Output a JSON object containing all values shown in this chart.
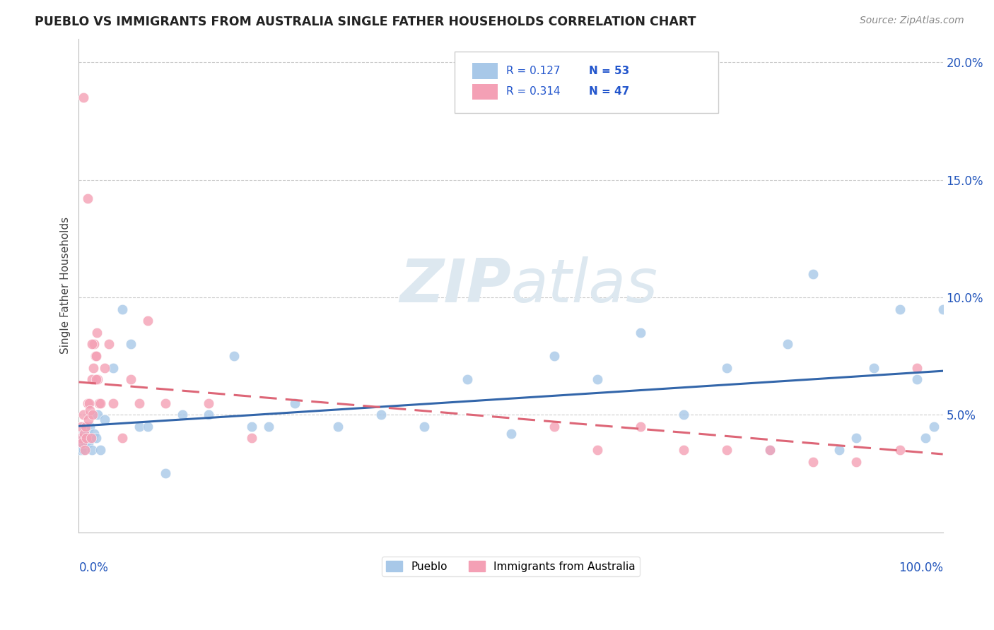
{
  "title": "PUEBLO VS IMMIGRANTS FROM AUSTRALIA SINGLE FATHER HOUSEHOLDS CORRELATION CHART",
  "source": "Source: ZipAtlas.com",
  "ylabel": "Single Father Households",
  "r_pueblo": "0.127",
  "n_pueblo": "53",
  "r_aus": "0.314",
  "n_aus": "47",
  "xlim": [
    0.0,
    100.0
  ],
  "ylim": [
    0.0,
    21.0
  ],
  "yticks": [
    5.0,
    10.0,
    15.0,
    20.0
  ],
  "color_pueblo": "#a8c8e8",
  "color_aus": "#f4a0b5",
  "color_pueblo_line": "#3366aa",
  "color_aus_line": "#dd6677",
  "watermark_color": "#dde8f0",
  "background_color": "#ffffff",
  "pueblo_x": [
    0.2,
    0.3,
    0.4,
    0.5,
    0.5,
    0.6,
    0.7,
    0.8,
    0.9,
    1.0,
    1.1,
    1.2,
    1.3,
    1.5,
    1.6,
    1.8,
    2.0,
    2.2,
    2.5,
    3.0,
    4.0,
    5.0,
    6.0,
    7.0,
    8.0,
    10.0,
    12.0,
    15.0,
    18.0,
    20.0,
    22.0,
    25.0,
    30.0,
    35.0,
    40.0,
    45.0,
    50.0,
    55.0,
    60.0,
    65.0,
    70.0,
    75.0,
    80.0,
    82.0,
    85.0,
    88.0,
    90.0,
    92.0,
    95.0,
    97.0,
    98.0,
    99.0,
    100.0
  ],
  "pueblo_y": [
    3.5,
    4.0,
    3.8,
    4.2,
    3.5,
    4.5,
    4.0,
    3.8,
    4.5,
    4.2,
    3.8,
    4.0,
    4.5,
    3.5,
    4.0,
    4.2,
    4.0,
    5.0,
    3.5,
    4.8,
    7.0,
    9.5,
    8.0,
    4.5,
    4.5,
    2.5,
    5.0,
    5.0,
    7.5,
    4.5,
    4.5,
    5.5,
    4.5,
    5.0,
    4.5,
    6.5,
    4.2,
    7.5,
    6.5,
    8.5,
    5.0,
    7.0,
    3.5,
    8.0,
    11.0,
    3.5,
    4.0,
    7.0,
    9.5,
    6.5,
    4.0,
    4.5,
    9.5
  ],
  "aus_x": [
    0.2,
    0.3,
    0.4,
    0.5,
    0.6,
    0.7,
    0.8,
    0.9,
    1.0,
    1.1,
    1.2,
    1.3,
    1.4,
    1.5,
    1.6,
    1.7,
    1.8,
    1.9,
    2.0,
    2.1,
    2.2,
    2.3,
    2.5,
    3.0,
    3.5,
    4.0,
    5.0,
    6.0,
    7.0,
    8.0,
    10.0,
    15.0,
    20.0,
    55.0,
    60.0,
    65.0,
    70.0,
    75.0,
    80.0,
    85.0,
    90.0,
    95.0,
    97.0,
    1.0,
    1.5,
    2.0,
    0.5
  ],
  "aus_y": [
    4.0,
    4.5,
    3.8,
    5.0,
    4.2,
    3.5,
    4.5,
    4.0,
    5.5,
    4.8,
    5.5,
    5.2,
    4.0,
    6.5,
    5.0,
    7.0,
    8.0,
    7.5,
    7.5,
    8.5,
    6.5,
    5.5,
    5.5,
    7.0,
    8.0,
    5.5,
    4.0,
    6.5,
    5.5,
    9.0,
    5.5,
    5.5,
    4.0,
    4.5,
    3.5,
    4.5,
    3.5,
    3.5,
    3.5,
    3.0,
    3.0,
    3.5,
    7.0,
    14.2,
    8.0,
    6.5,
    18.5
  ]
}
